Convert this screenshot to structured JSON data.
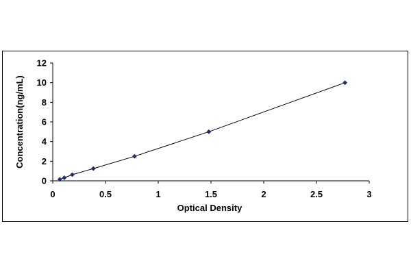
{
  "chart_data": {
    "type": "scatter",
    "title": "",
    "xlabel": "Optical Density",
    "ylabel": "Concentration(ng/mL)",
    "xlim": [
      0,
      3
    ],
    "ylim": [
      0,
      12
    ],
    "x_ticks": [
      "0",
      "0.5",
      "1",
      "1.5",
      "2",
      "2.5",
      "3"
    ],
    "y_ticks": [
      "0",
      "2",
      "4",
      "6",
      "8",
      "10",
      "12"
    ],
    "grid": false,
    "legend": "none",
    "trendline": true,
    "marker": "diamond",
    "colors": {
      "marker": "#1f2d6e",
      "line": "#000000",
      "axis": "#000000"
    },
    "series": [
      {
        "x": [
          0.067,
          0.11,
          0.185,
          0.385,
          0.775,
          1.48,
          2.77
        ],
        "y": [
          0.156,
          0.313,
          0.625,
          1.25,
          2.5,
          5,
          10
        ]
      }
    ]
  }
}
